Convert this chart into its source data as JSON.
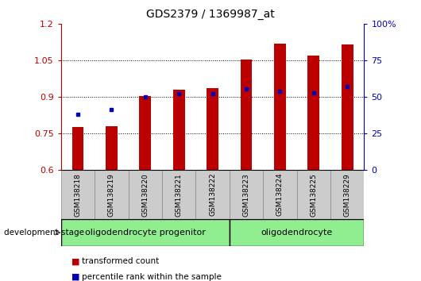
{
  "title": "GDS2379 / 1369987_at",
  "categories": [
    "GSM138218",
    "GSM138219",
    "GSM138220",
    "GSM138221",
    "GSM138222",
    "GSM138223",
    "GSM138224",
    "GSM138225",
    "GSM138229"
  ],
  "red_values": [
    0.775,
    0.78,
    0.905,
    0.93,
    0.935,
    1.055,
    1.12,
    1.07,
    1.115
  ],
  "blue_values": [
    0.83,
    0.848,
    0.902,
    0.912,
    0.912,
    0.932,
    0.922,
    0.918,
    0.942
  ],
  "ylim_left": [
    0.6,
    1.2
  ],
  "ylim_right": [
    0,
    100
  ],
  "yticks_left": [
    0.6,
    0.75,
    0.9,
    1.05,
    1.2
  ],
  "yticks_right": [
    0,
    25,
    50,
    75,
    100
  ],
  "ytick_labels_right": [
    "0",
    "25",
    "50",
    "75",
    "100%"
  ],
  "group1_label": "oligodendrocyte progenitor",
  "group2_label": "oligodendrocyte",
  "group1_count": 5,
  "group2_count": 4,
  "stage_label": "development stage",
  "legend1": "transformed count",
  "legend2": "percentile rank within the sample",
  "red_color": "#bb0000",
  "blue_color": "#0000bb",
  "bar_width": 0.35,
  "group1_bg": "#90ee90",
  "group2_bg": "#90ee90",
  "axis_bg": "#cccccc",
  "title_fontsize": 10
}
